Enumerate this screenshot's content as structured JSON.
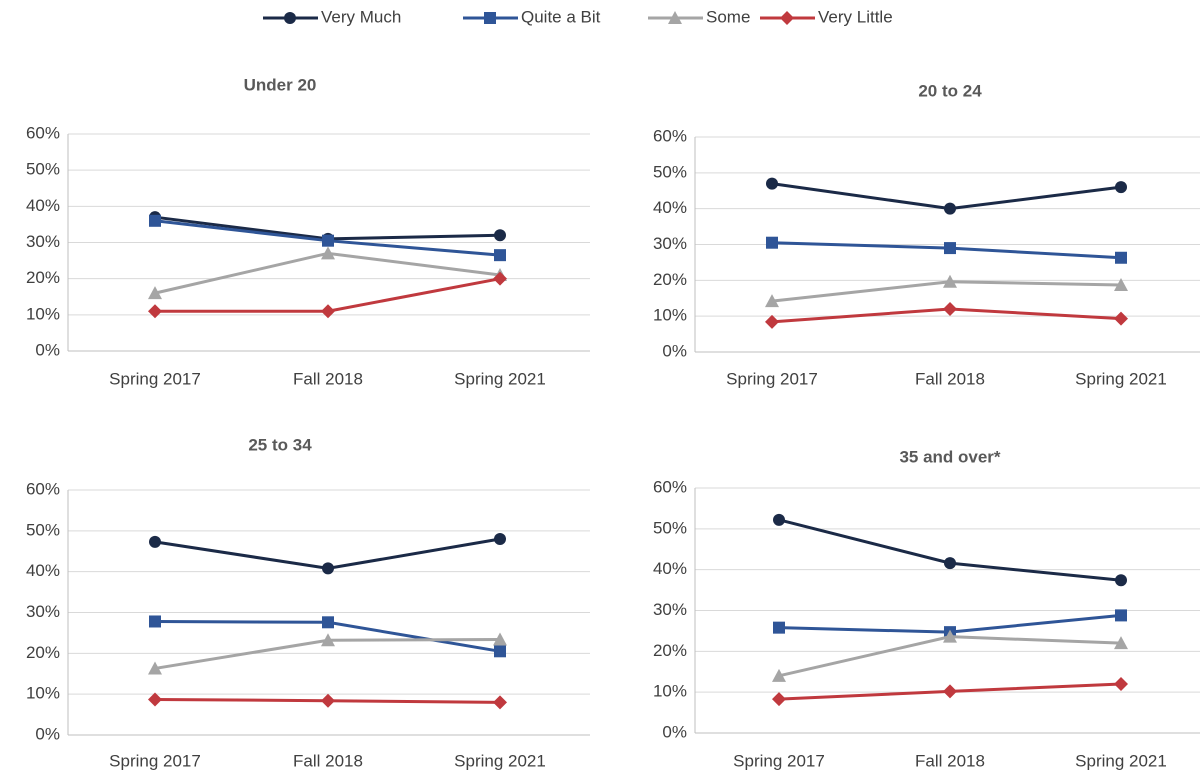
{
  "legend": [
    {
      "name": "Very Much",
      "color": "#1b2a47",
      "marker": "circle"
    },
    {
      "name": "Quite a Bit",
      "color": "#2f5597",
      "marker": "square"
    },
    {
      "name": "Some",
      "color": "#a5a5a5",
      "marker": "triangle"
    },
    {
      "name": "Very Little",
      "color": "#c0393e",
      "marker": "diamond"
    }
  ],
  "chart_data": [
    {
      "type": "line",
      "title": "Under 20",
      "categories": [
        "Spring 2017",
        "Fall 2018",
        "Spring 2021"
      ],
      "ylim": [
        0,
        60
      ],
      "yticks": [
        {
          "value": 0,
          "label": "0%"
        },
        {
          "value": 10,
          "label": "10%"
        },
        {
          "value": 20,
          "label": "20%"
        },
        {
          "value": 30,
          "label": "30%"
        },
        {
          "value": 40,
          "label": "40%"
        },
        {
          "value": 50,
          "label": "50%"
        },
        {
          "value": 60,
          "label": "60%"
        }
      ],
      "grid": true,
      "series": [
        {
          "values": [
            37,
            31,
            32
          ]
        },
        {
          "values": [
            36,
            30.5,
            26.5
          ]
        },
        {
          "values": [
            16,
            27,
            21
          ]
        },
        {
          "values": [
            11,
            11,
            20
          ]
        }
      ]
    },
    {
      "type": "line",
      "title": "20 to 24",
      "categories": [
        "Spring 2017",
        "Fall 2018",
        "Spring 2021"
      ],
      "ylim": [
        0,
        60
      ],
      "yticks": [
        {
          "value": 0,
          "label": "0%"
        },
        {
          "value": 10,
          "label": "10%"
        },
        {
          "value": 20,
          "label": "20%"
        },
        {
          "value": 30,
          "label": "30%"
        },
        {
          "value": 40,
          "label": "40%"
        },
        {
          "value": 50,
          "label": "50%"
        },
        {
          "value": 60,
          "label": "60%"
        }
      ],
      "grid": true,
      "series": [
        {
          "values": [
            47,
            40,
            46
          ]
        },
        {
          "values": [
            30.5,
            29,
            26.3
          ]
        },
        {
          "values": [
            14.2,
            19.6,
            18.7
          ]
        },
        {
          "values": [
            8.4,
            12,
            9.3
          ]
        }
      ]
    },
    {
      "type": "line",
      "title": "25 to 34",
      "categories": [
        "Spring 2017",
        "Fall 2018",
        "Spring 2021"
      ],
      "ylim": [
        0,
        60
      ],
      "yticks": [
        {
          "value": 0,
          "label": "0%"
        },
        {
          "value": 10,
          "label": "10%"
        },
        {
          "value": 20,
          "label": "20%"
        },
        {
          "value": 30,
          "label": "30%"
        },
        {
          "value": 40,
          "label": "40%"
        },
        {
          "value": 50,
          "label": "50%"
        },
        {
          "value": 60,
          "label": "60%"
        }
      ],
      "grid": true,
      "series": [
        {
          "values": [
            47.3,
            40.8,
            48
          ]
        },
        {
          "values": [
            27.8,
            27.6,
            20.5
          ]
        },
        {
          "values": [
            16.3,
            23.2,
            23.4
          ]
        },
        {
          "values": [
            8.7,
            8.4,
            8
          ]
        }
      ]
    },
    {
      "type": "line",
      "title": "35  and over*",
      "categories": [
        "Spring 2017",
        "Fall 2018",
        "Spring 2021"
      ],
      "ylim": [
        0,
        60
      ],
      "yticks": [
        {
          "value": 0,
          "label": "0%"
        },
        {
          "value": 10,
          "label": "10%"
        },
        {
          "value": 20,
          "label": "20%"
        },
        {
          "value": 30,
          "label": "30%"
        },
        {
          "value": 40,
          "label": "40%"
        },
        {
          "value": 50,
          "label": "50%"
        },
        {
          "value": 60,
          "label": "60%"
        }
      ],
      "grid": true,
      "series": [
        {
          "values": [
            52.2,
            41.6,
            37.4
          ]
        },
        {
          "values": [
            25.8,
            24.7,
            28.8
          ]
        },
        {
          "values": [
            14,
            23.6,
            22
          ]
        },
        {
          "values": [
            8.3,
            10.2,
            12
          ]
        }
      ]
    }
  ]
}
